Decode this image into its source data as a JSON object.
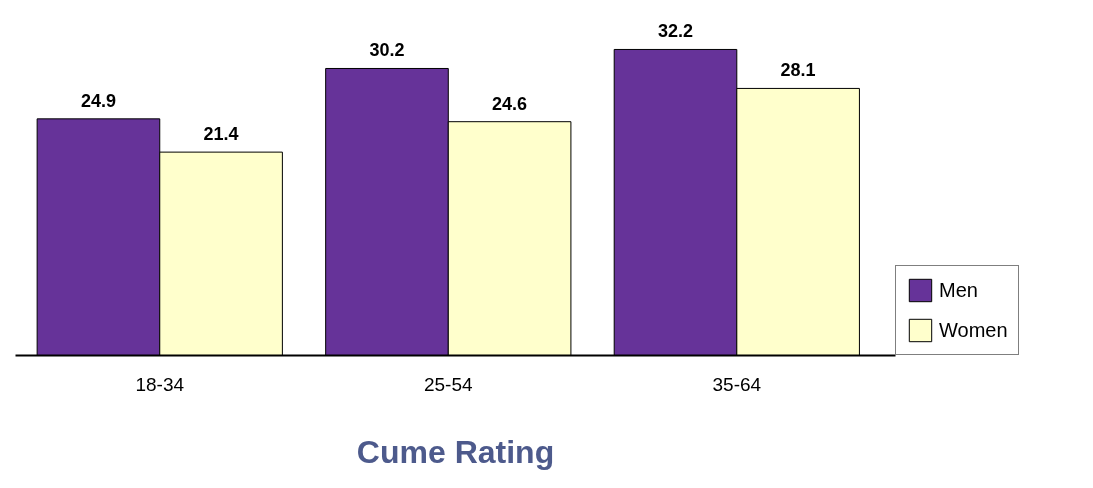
{
  "chart_data": {
    "type": "bar",
    "xlabel": "Cume Rating",
    "categories": [
      "18-34",
      "25-54",
      "35-64"
    ],
    "series": [
      {
        "name": "Men",
        "color": "#663399",
        "values": [
          24.9,
          30.2,
          32.2
        ]
      },
      {
        "name": "Women",
        "color": "#ffffcc",
        "values": [
          21.4,
          24.6,
          28.1
        ]
      }
    ],
    "tick_labels": "x",
    "data_labels": true,
    "grid": false,
    "legend": "right"
  }
}
